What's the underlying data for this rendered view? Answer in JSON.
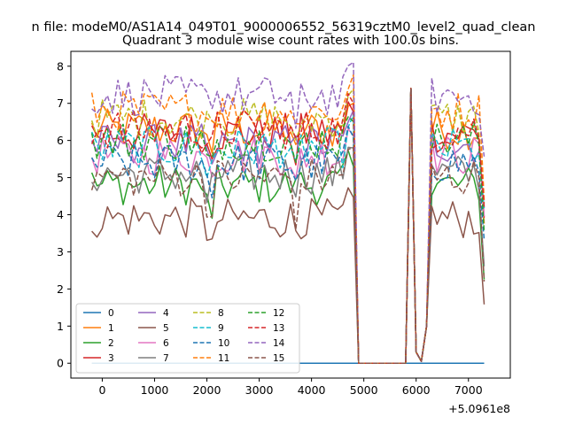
{
  "chart_data": {
    "type": "line",
    "suptitle": "n file: modeM0/AS1A14_049T01_9000006552_56319cztM0_level2_quad_clean",
    "title": "Quadrant 3 module wise count rates with 100.0s bins.",
    "xlabel": "",
    "ylabel": "",
    "x_offset_label": "+5.0961e8",
    "xlim": [
      -600,
      7800
    ],
    "ylim": [
      -0.4,
      8.4
    ],
    "xticks": [
      0,
      1000,
      2000,
      3000,
      4000,
      5000,
      6000,
      7000
    ],
    "yticks": [
      0,
      1,
      2,
      3,
      4,
      5,
      6,
      7,
      8
    ],
    "legend_location": "lower-left",
    "legend_columns": 4,
    "series": [
      {
        "name": "0",
        "color": "#1f77b4",
        "style": "solid",
        "base": 0.0
      },
      {
        "name": "1",
        "color": "#ff7f0e",
        "style": "solid",
        "base": 6.3
      },
      {
        "name": "2",
        "color": "#2ca02c",
        "style": "solid",
        "base": 4.8
      },
      {
        "name": "3",
        "color": "#d62728",
        "style": "solid",
        "base": 6.2
      },
      {
        "name": "4",
        "color": "#9467bd",
        "style": "solid",
        "base": 5.9
      },
      {
        "name": "5",
        "color": "#8c564b",
        "style": "solid",
        "base": 3.9
      },
      {
        "name": "6",
        "color": "#e377c2",
        "style": "solid",
        "base": 5.6
      },
      {
        "name": "7",
        "color": "#7f7f7f",
        "style": "solid",
        "base": 5.1
      },
      {
        "name": "8",
        "color": "#bcbd22",
        "style": "dashed",
        "base": 6.6
      },
      {
        "name": "9",
        "color": "#17becf",
        "style": "dashed",
        "base": 5.8
      },
      {
        "name": "10",
        "color": "#1f77b4",
        "style": "dashed",
        "base": 5.4
      },
      {
        "name": "11",
        "color": "#ff7f0e",
        "style": "dashed",
        "base": 6.8
      },
      {
        "name": "12",
        "color": "#2ca02c",
        "style": "dashed",
        "base": 6.0
      },
      {
        "name": "13",
        "color": "#d62728",
        "style": "dashed",
        "base": 6.3
      },
      {
        "name": "14",
        "color": "#9467bd",
        "style": "dashed",
        "base": 7.2
      },
      {
        "name": "15",
        "color": "#8c564b",
        "style": "dashed",
        "base": 5.0
      }
    ]
  }
}
